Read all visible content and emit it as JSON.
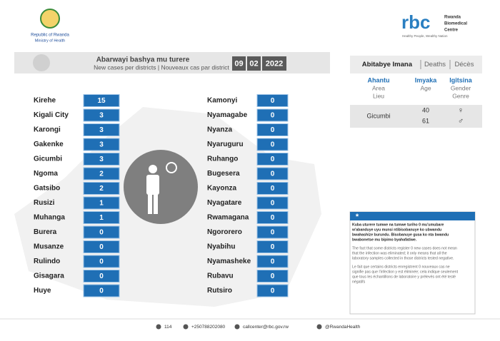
{
  "header": {
    "country": "Republic of Rwanda",
    "ministry": "Ministry of Health",
    "rbc_logo": "rbc",
    "rbc_name": [
      "Rwanda",
      "Biomedical",
      "Centre"
    ],
    "rbc_slogan": "Healthy People, Wealthy Nation"
  },
  "cases": {
    "title": "Abarwayi bashya mu turere",
    "subtitle": "New cases per districts | Nouveaux cas par district",
    "date": [
      "09",
      "02",
      "2022"
    ],
    "left": [
      {
        "name": "Kirehe",
        "value": 15
      },
      {
        "name": "Kigali City",
        "value": 3
      },
      {
        "name": "Karongi",
        "value": 3
      },
      {
        "name": "Gakenke",
        "value": 3
      },
      {
        "name": "Gicumbi",
        "value": 3
      },
      {
        "name": "Ngoma",
        "value": 2
      },
      {
        "name": "Gatsibo",
        "value": 2
      },
      {
        "name": "Rusizi",
        "value": 1
      },
      {
        "name": "Muhanga",
        "value": 1
      },
      {
        "name": "Burera",
        "value": 0
      },
      {
        "name": "Musanze",
        "value": 0
      },
      {
        "name": "Rulindo",
        "value": 0
      },
      {
        "name": "Gisagara",
        "value": 0
      },
      {
        "name": "Huye",
        "value": 0
      }
    ],
    "right": [
      {
        "name": "Kamonyi",
        "value": 0
      },
      {
        "name": "Nyamagabe",
        "value": 0
      },
      {
        "name": "Nyanza",
        "value": 0
      },
      {
        "name": "Nyaruguru",
        "value": 0
      },
      {
        "name": "Ruhango",
        "value": 0
      },
      {
        "name": "Bugesera",
        "value": 0
      },
      {
        "name": "Kayonza",
        "value": 0
      },
      {
        "name": "Nyagatare",
        "value": 0
      },
      {
        "name": "Rwamagana",
        "value": 0
      },
      {
        "name": "Ngororero",
        "value": 0
      },
      {
        "name": "Nyabihu",
        "value": 0
      },
      {
        "name": "Nyamasheke",
        "value": 0
      },
      {
        "name": "Rubavu",
        "value": 0
      },
      {
        "name": "Rutsiro",
        "value": 0
      }
    ]
  },
  "deaths": {
    "title": [
      "Abitabye Imana",
      "Deaths",
      "Décès"
    ],
    "columns": [
      [
        "Ahantu",
        "Area",
        "Lieu"
      ],
      [
        "Imyaka",
        "Age"
      ],
      [
        "Igitsina",
        "Gender",
        "Genre"
      ]
    ],
    "row": {
      "district": "Gicumbi",
      "ages": [
        40,
        61
      ],
      "genders": [
        "♀",
        "♂"
      ]
    }
  },
  "note": {
    "mark": "*",
    "rw": [
      "Kuba uturere tumwe na tumwe turiho 0 mu'umubare",
      "w'abanduye uyu munsi ntibisobanuye ko ubwandu",
      "bwahashize burundu. Bisobanuye gusa ko nta bwandu",
      "bwabonetse mu bipimo byahafatiwe."
    ],
    "en": [
      "The fact that some districts register 0 new cases does not mean",
      "that the infection was eliminated; it only means that all the",
      "laboratory samples collected in those districts tested negative."
    ],
    "fr": [
      "Le fait que certains districts enregistrent 0 nouveaux cas ne",
      "signifie pas que l'infection y est éliminée; cela indique seulement",
      "que tous les échantillons de laboratoire y prélevés ont été testé",
      "négatifs"
    ]
  },
  "footer": [
    "114",
    "+250788202080",
    "callcenter@rbc.gov.rw",
    "@RwandaHealth"
  ]
}
